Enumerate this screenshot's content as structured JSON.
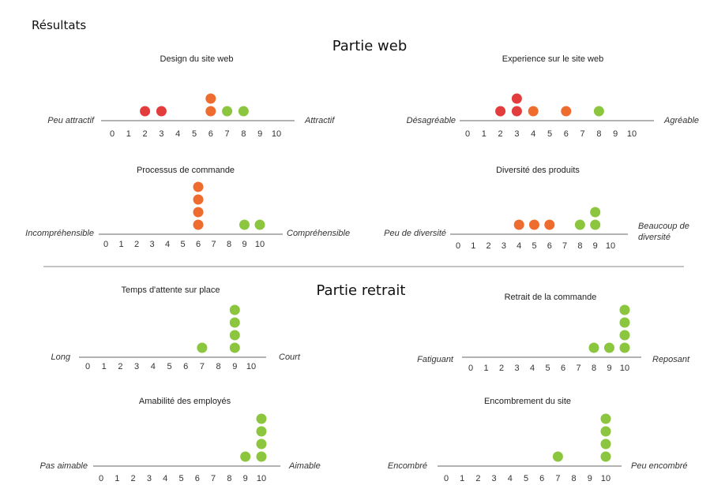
{
  "page": {
    "title": "Résultats",
    "section_web": "Partie web",
    "section_retrait": "Partie retrait"
  },
  "colors": {
    "red": "#e23c3c",
    "orange": "#ef6c2f",
    "green": "#8cc63f",
    "axis": "#666666",
    "divider": "#888888"
  },
  "chart_data": [
    {
      "id": "design",
      "type": "scatter",
      "title": "Design du site web",
      "left_label": [
        "Peu attractif"
      ],
      "right_label": [
        "Attractif"
      ],
      "ticks": [
        "0",
        "1",
        "2",
        "3",
        "4",
        "5",
        "6",
        "7",
        "8",
        "9",
        "10"
      ],
      "xlim": [
        0,
        10
      ],
      "points": [
        {
          "x": 2,
          "count": 1,
          "color": "red"
        },
        {
          "x": 3,
          "count": 1,
          "color": "red"
        },
        {
          "x": 6,
          "count": 2,
          "color": "orange"
        },
        {
          "x": 7,
          "count": 1,
          "color": "green"
        },
        {
          "x": 8,
          "count": 1,
          "color": "green"
        }
      ]
    },
    {
      "id": "experience",
      "type": "scatter",
      "title": "Experience sur le site web",
      "left_label": [
        "Désagréable"
      ],
      "right_label": [
        "Agréable"
      ],
      "ticks": [
        "0",
        "1",
        "2",
        "3",
        "4",
        "5",
        "6",
        "7",
        "8",
        "9",
        "10"
      ],
      "xlim": [
        0,
        10
      ],
      "points": [
        {
          "x": 2,
          "count": 1,
          "color": "red"
        },
        {
          "x": 3,
          "count": 2,
          "color": "red"
        },
        {
          "x": 4,
          "count": 1,
          "color": "orange"
        },
        {
          "x": 6,
          "count": 1,
          "color": "orange"
        },
        {
          "x": 8,
          "count": 1,
          "color": "green"
        }
      ]
    },
    {
      "id": "commande",
      "type": "scatter",
      "title": "Processus de commande",
      "left_label": [
        "Incompréhensible"
      ],
      "right_label": [
        "Compréhensible"
      ],
      "ticks": [
        "0",
        "1",
        "2",
        "3",
        "4",
        "5",
        "6",
        "7",
        "8",
        "9",
        "10"
      ],
      "xlim": [
        0,
        10
      ],
      "points": [
        {
          "x": 6,
          "count": 4,
          "color": "orange"
        },
        {
          "x": 9,
          "count": 1,
          "color": "green"
        },
        {
          "x": 10,
          "count": 1,
          "color": "green"
        }
      ]
    },
    {
      "id": "diversite",
      "type": "scatter",
      "title": "Diversité des produits",
      "left_label": [
        "Peu de diversité"
      ],
      "right_label": [
        "Beaucoup de",
        "diversité"
      ],
      "ticks": [
        "0",
        "1",
        "2",
        "3",
        "4",
        "5",
        "6",
        "7",
        "8",
        "9",
        "10"
      ],
      "xlim": [
        0,
        10
      ],
      "points": [
        {
          "x": 4,
          "count": 1,
          "color": "orange"
        },
        {
          "x": 5,
          "count": 1,
          "color": "orange"
        },
        {
          "x": 6,
          "count": 1,
          "color": "orange"
        },
        {
          "x": 8,
          "count": 1,
          "color": "green"
        },
        {
          "x": 9,
          "count": 2,
          "color": "green"
        }
      ]
    },
    {
      "id": "attente",
      "type": "scatter",
      "title": "Temps d'attente sur place",
      "left_label": [
        "Long"
      ],
      "right_label": [
        "Court"
      ],
      "ticks": [
        "0",
        "1",
        "2",
        "3",
        "4",
        "5",
        "6",
        "7",
        "8",
        "9",
        "10"
      ],
      "xlim": [
        0,
        10
      ],
      "points": [
        {
          "x": 7,
          "count": 1,
          "color": "green"
        },
        {
          "x": 9,
          "count": 4,
          "color": "green"
        }
      ]
    },
    {
      "id": "retrait",
      "type": "scatter",
      "title": "Retrait de la commande",
      "left_label": [
        "Fatiguant"
      ],
      "right_label": [
        "Reposant"
      ],
      "ticks": [
        "0",
        "1",
        "2",
        "3",
        "4",
        "5",
        "6",
        "7",
        "8",
        "9",
        "10"
      ],
      "xlim": [
        0,
        10
      ],
      "points": [
        {
          "x": 8,
          "count": 1,
          "color": "green"
        },
        {
          "x": 9,
          "count": 1,
          "color": "green"
        },
        {
          "x": 10,
          "count": 4,
          "color": "green"
        }
      ]
    },
    {
      "id": "amabilite",
      "type": "scatter",
      "title": "Amabilité des employés",
      "left_label": [
        "Pas aimable"
      ],
      "right_label": [
        "Aimable"
      ],
      "ticks": [
        "0",
        "1",
        "2",
        "3",
        "4",
        "5",
        "6",
        "7",
        "8",
        "9",
        "10"
      ],
      "xlim": [
        0,
        10
      ],
      "points": [
        {
          "x": 9,
          "count": 1,
          "color": "green"
        },
        {
          "x": 10,
          "count": 4,
          "color": "green"
        }
      ]
    },
    {
      "id": "encombrement",
      "type": "scatter",
      "title": "Encombrement du site",
      "left_label": [
        "Encombré"
      ],
      "right_label": [
        "Peu encombré"
      ],
      "ticks": [
        "0",
        "1",
        "2",
        "3",
        "4",
        "5",
        "6",
        "7",
        "8",
        "9",
        "10"
      ],
      "xlim": [
        0,
        10
      ],
      "points": [
        {
          "x": 7,
          "count": 1,
          "color": "green"
        },
        {
          "x": 10,
          "count": 4,
          "color": "green"
        }
      ]
    }
  ]
}
